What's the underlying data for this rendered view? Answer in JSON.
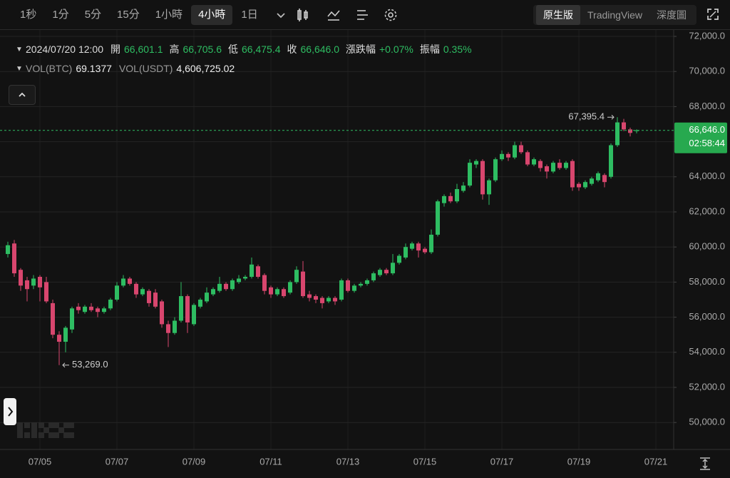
{
  "toolbar": {
    "intervals": [
      "1秒",
      "1分",
      "5分",
      "15分",
      "1小時",
      "4小時",
      "1日"
    ],
    "active_interval": 5,
    "views": [
      "原生版",
      "TradingView",
      "深度圖"
    ],
    "active_view": 0
  },
  "chart_data": {
    "type": "candlestick",
    "ohlc_legend": {
      "time": "2024/07/20 12:00",
      "items": [
        {
          "label": "開",
          "value": "66,601.1"
        },
        {
          "label": "高",
          "value": "66,705.6"
        },
        {
          "label": "低",
          "value": "66,475.4"
        },
        {
          "label": "收",
          "value": "66,646.0"
        },
        {
          "label": "漲跌幅",
          "value": "+0.07%"
        },
        {
          "label": "振幅",
          "value": "0.35%"
        }
      ]
    },
    "volume_legend": [
      {
        "label": "VOL(BTC)",
        "value": "69.1377"
      },
      {
        "label": "VOL(USDT)",
        "value": "4,606,725.02"
      }
    ],
    "up_color": "#2ebd62",
    "down_color": "#d8466e",
    "open": [
      59600,
      60200,
      58700,
      58100,
      57800,
      58300,
      58000,
      56800,
      55000,
      54600,
      55300,
      56600,
      56300,
      56600,
      56500,
      56300,
      56500,
      57000,
      57800,
      58200,
      57900,
      57300,
      57500,
      57400,
      56900,
      55600,
      55100,
      55800,
      57200,
      55600,
      56600,
      56900,
      57300,
      57500,
      57900,
      57600,
      58000,
      58200,
      58300,
      58900,
      58400,
      57700,
      57300,
      57600,
      57400,
      58000,
      58600,
      57300,
      57200,
      57100,
      56900,
      57100,
      57000,
      58100,
      57500,
      57800,
      57900,
      58100,
      58400,
      58700,
      58500,
      59100,
      59400,
      59900,
      60200,
      59900,
      59700,
      60700,
      62500,
      62900,
      62600,
      63200,
      63500,
      64700,
      64900,
      63000,
      63800,
      65000,
      65300,
      65100,
      65800,
      65400,
      64700,
      64900,
      64600,
      64300,
      64800,
      64500,
      64900,
      63600,
      63400,
      63600,
      63800,
      64100,
      64000,
      65800,
      67100,
      66700,
      66601.1
    ],
    "high": [
      60300,
      60400,
      58800,
      58300,
      58400,
      58400,
      58300,
      57000,
      55200,
      55500,
      56600,
      56800,
      56700,
      56800,
      56600,
      56600,
      57100,
      58000,
      58400,
      58300,
      58000,
      57700,
      57600,
      57600,
      57000,
      55800,
      56000,
      58000,
      57300,
      56800,
      57100,
      57700,
      57700,
      58300,
      58000,
      58200,
      58400,
      58400,
      59400,
      59000,
      58500,
      57800,
      57700,
      57700,
      58100,
      58900,
      59200,
      57500,
      57300,
      57200,
      57200,
      57200,
      58200,
      58200,
      57900,
      58000,
      58200,
      58600,
      58800,
      58800,
      59600,
      59600,
      60200,
      60300,
      60300,
      60000,
      61000,
      62700,
      63000,
      63100,
      63600,
      63700,
      65000,
      65000,
      65000,
      63900,
      65100,
      65500,
      65400,
      66000,
      66000,
      65500,
      65100,
      65000,
      64700,
      64900,
      65000,
      64900,
      65000,
      63700,
      63800,
      64000,
      64300,
      64200,
      65900,
      67395.4,
      67300,
      66800,
      66705.6
    ],
    "low": [
      59400,
      58300,
      57500,
      56900,
      57600,
      56900,
      56800,
      54800,
      53269,
      54000,
      55100,
      56200,
      56200,
      56300,
      56000,
      56200,
      56400,
      56900,
      57700,
      57800,
      57100,
      57200,
      56600,
      56500,
      55400,
      54300,
      55000,
      55700,
      55100,
      55500,
      56500,
      56800,
      57200,
      57400,
      57500,
      57500,
      57900,
      58100,
      58200,
      58200,
      57300,
      57100,
      57200,
      57100,
      57300,
      57900,
      57100,
      56900,
      56800,
      56500,
      56800,
      56700,
      56900,
      57400,
      57400,
      57700,
      57800,
      58000,
      58300,
      58400,
      58400,
      59000,
      59300,
      59800,
      59400,
      59600,
      59600,
      60600,
      62300,
      62500,
      62500,
      63100,
      63400,
      64500,
      62700,
      62400,
      63700,
      64900,
      64900,
      65000,
      65300,
      64600,
      64600,
      64300,
      63900,
      64200,
      64400,
      64400,
      63200,
      63200,
      63300,
      63500,
      63700,
      63400,
      63900,
      65700,
      66600,
      66300,
      66475.4
    ],
    "close": [
      60100,
      58500,
      57800,
      57600,
      58200,
      57700,
      56900,
      55000,
      54600,
      55400,
      56500,
      56400,
      56600,
      56400,
      56300,
      56500,
      57000,
      57800,
      58200,
      57900,
      57300,
      57600,
      56800,
      56600,
      55600,
      55100,
      55800,
      57200,
      55700,
      56700,
      57000,
      57400,
      57600,
      57900,
      57600,
      58100,
      58200,
      58300,
      59000,
      58300,
      57500,
      57300,
      57600,
      57200,
      58000,
      58700,
      57200,
      57100,
      57000,
      56800,
      57100,
      56900,
      58100,
      57500,
      57800,
      57900,
      58100,
      58500,
      58700,
      58500,
      59100,
      59500,
      60000,
      60200,
      59800,
      59700,
      60700,
      62600,
      62900,
      62600,
      63300,
      63500,
      64800,
      64900,
      63000,
      63800,
      65000,
      65300,
      65100,
      65800,
      65400,
      64700,
      65000,
      64500,
      64300,
      64800,
      64500,
      64800,
      63400,
      63400,
      63700,
      63900,
      64200,
      63700,
      65800,
      67100,
      66700,
      66500,
      66646.0
    ],
    "xlim": [
      -1.222,
      103.778
    ],
    "xticks": [
      {
        "value": 5,
        "label": "07/05"
      },
      {
        "value": 17,
        "label": "07/07"
      },
      {
        "value": 29,
        "label": "07/09"
      },
      {
        "value": 41,
        "label": "07/11"
      },
      {
        "value": 53,
        "label": "07/13"
      },
      {
        "value": 65,
        "label": "07/15"
      },
      {
        "value": 77,
        "label": "07/17"
      },
      {
        "value": 89,
        "label": "07/19"
      },
      {
        "value": 101,
        "label": "07/21"
      }
    ],
    "ylim": [
      48463,
      72122
    ],
    "yticks": [
      {
        "value": 50000,
        "label": "50,000.0"
      },
      {
        "value": 52000,
        "label": "52,000.0"
      },
      {
        "value": 54000,
        "label": "54,000.0"
      },
      {
        "value": 56000,
        "label": "56,000.0"
      },
      {
        "value": 58000,
        "label": "58,000.0"
      },
      {
        "value": 60000,
        "label": "60,000.0"
      },
      {
        "value": 62000,
        "label": "62,000.0"
      },
      {
        "value": 64000,
        "label": "64,000.0"
      },
      {
        "value": 66000,
        "label": "66,000.0"
      },
      {
        "value": 68000,
        "label": "68,000.0"
      },
      {
        "value": 70000,
        "label": "70,000.0"
      },
      {
        "value": 72000,
        "label": "72,000.0"
      }
    ],
    "grid": true,
    "max_label": {
      "value": 67395.4,
      "label": "67,395.4"
    },
    "min_label": {
      "value": 53269,
      "label": "53,269.0"
    },
    "last_price": {
      "value": 66646.0,
      "label": "66,646.0",
      "countdown": "02:58:44"
    }
  }
}
